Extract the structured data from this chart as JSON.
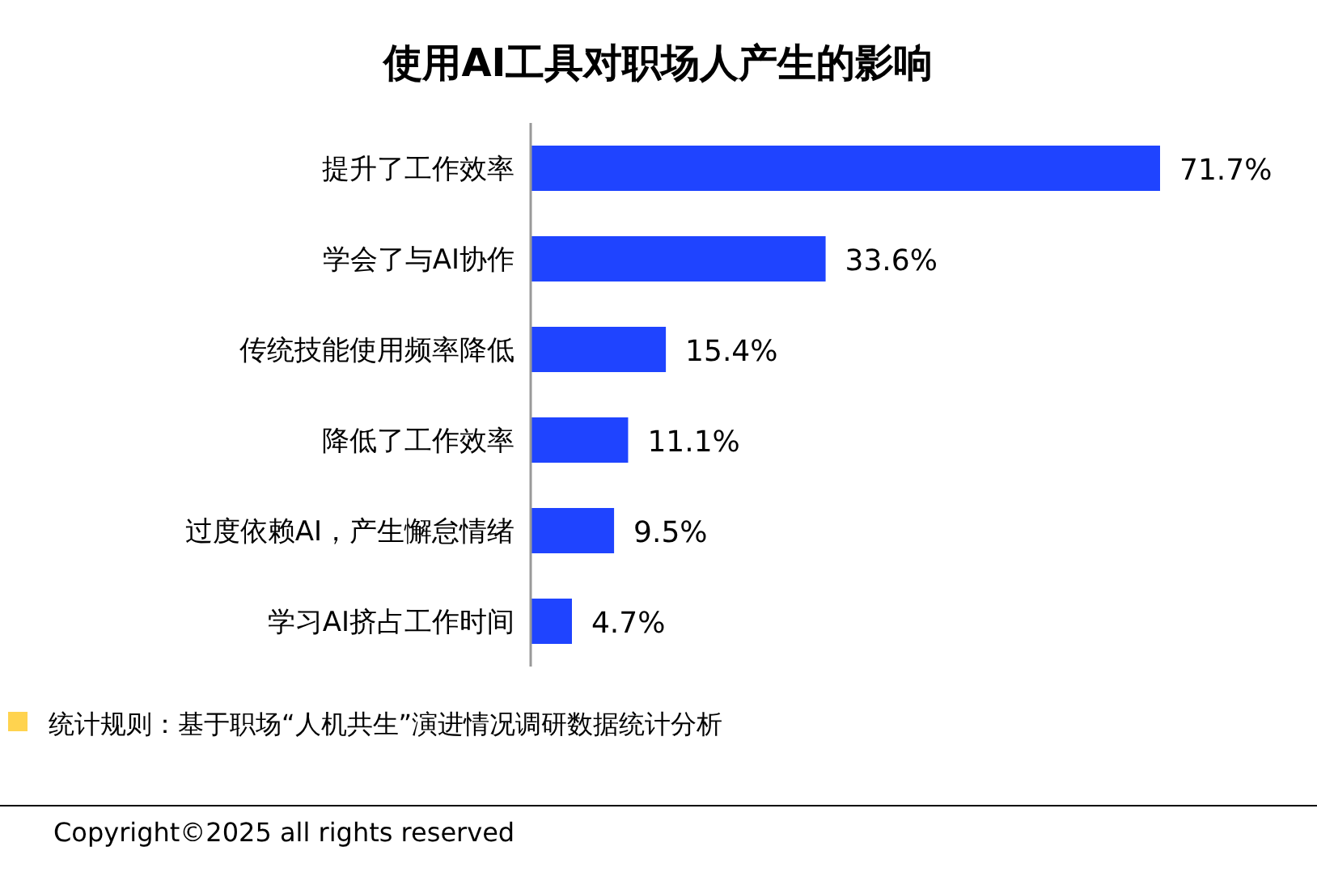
{
  "chart_data": {
    "type": "bar",
    "orientation": "horizontal",
    "title": "使用AI工具对职场人产生的影响",
    "categories": [
      "提升了工作效率",
      "学会了与AI协作",
      "传统技能使用频率降低",
      "降低了工作效率",
      "过度依赖AI，产生懈怠情绪",
      "学习AI挤占工作时间"
    ],
    "values": [
      71.7,
      33.6,
      15.4,
      11.1,
      9.5,
      4.7
    ],
    "value_labels": [
      "71.7%",
      "33.6%",
      "15.4%",
      "11.1%",
      "9.5%",
      "4.7%"
    ],
    "color": "#1f44ff",
    "annotations": [
      "统计规则：基于职场“人机共生”演进情况调研数据统计分析",
      "Copyright©2025 all rights reserved"
    ]
  }
}
